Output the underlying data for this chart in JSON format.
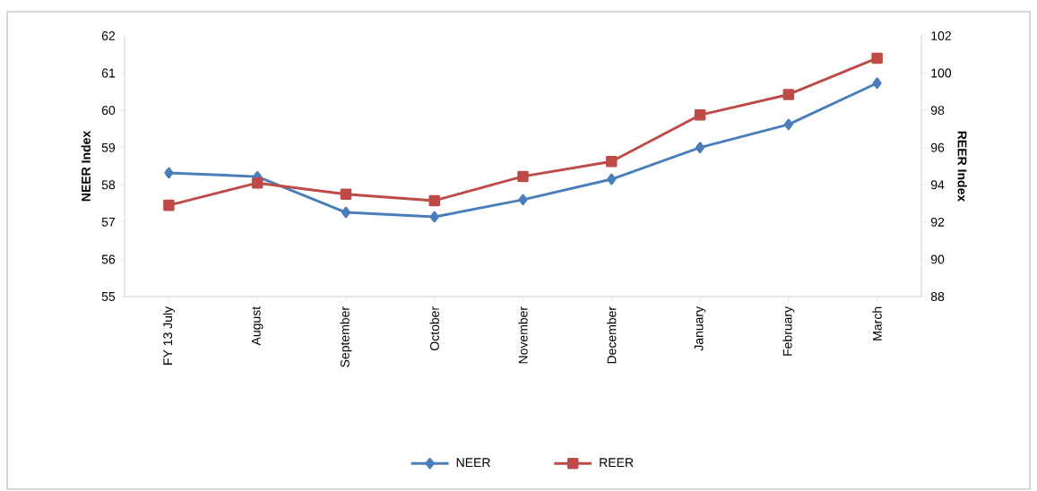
{
  "chart_data": {
    "type": "line",
    "ylabel": "NEER Index",
    "y2label": "REER Index",
    "categories": [
      "FY 13 July",
      "August",
      "September",
      "October",
      "November",
      "December",
      "January",
      "February",
      "March"
    ],
    "series": [
      {
        "name": "NEER",
        "color": "#4a7ebb",
        "marker": "diamond",
        "values": [
          58.32,
          58.22,
          57.26,
          57.14,
          57.6,
          58.15,
          59.0,
          59.62,
          60.73
        ]
      },
      {
        "name": "REER",
        "color": "#be4b48",
        "marker": "square",
        "axis": "y2",
        "values": [
          92.9,
          94.1,
          93.5,
          93.15,
          94.45,
          95.25,
          97.75,
          98.85,
          100.8
        ]
      }
    ],
    "ylim": [
      55,
      62
    ],
    "yticks": [
      55,
      56,
      57,
      58,
      59,
      60,
      61,
      62
    ],
    "y2lim": [
      88,
      102
    ],
    "y2ticks": [
      88,
      90,
      92,
      94,
      96,
      98,
      100,
      102
    ],
    "grid": false,
    "legend": "bottom"
  }
}
